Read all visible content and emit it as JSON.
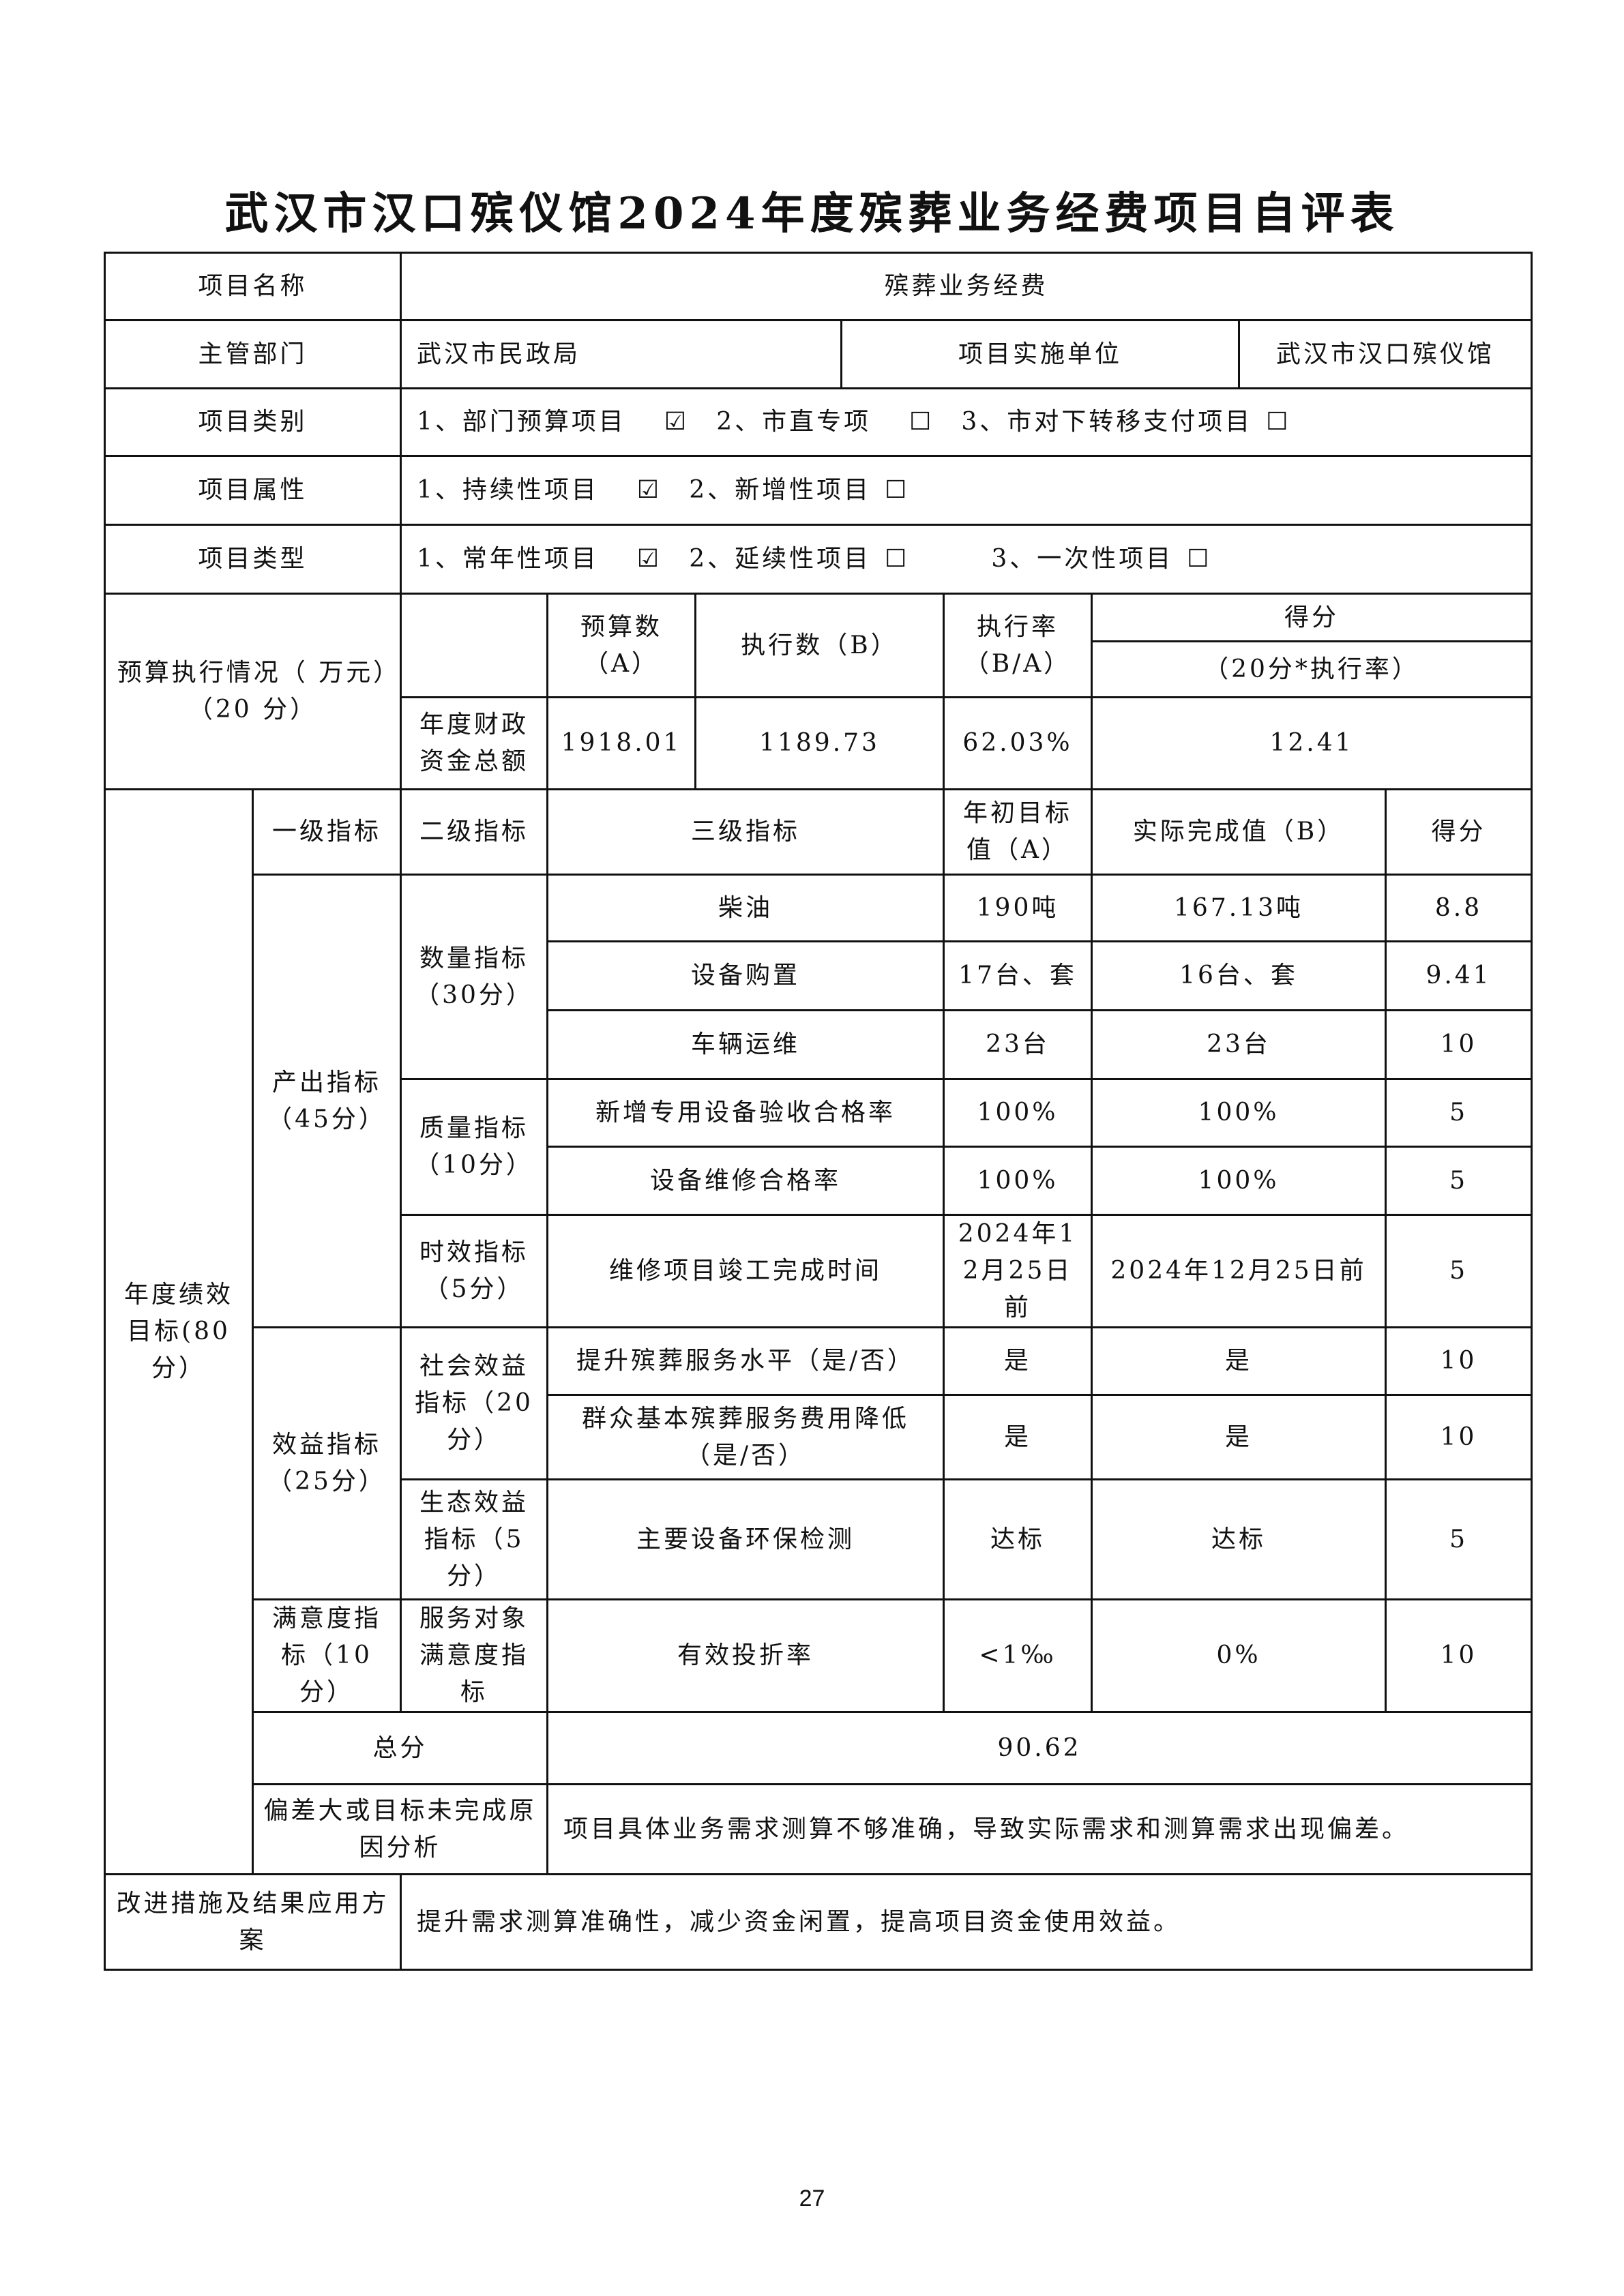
{
  "title": "武汉市汉口殡仪馆2024年度殡葬业务经费项目自评表",
  "project_name_label": "项目名称",
  "project_name": "殡葬业务经费",
  "dept_label": "主管部门",
  "dept": "武汉市民政局",
  "impl_label": "项目实施单位",
  "impl": "武汉市汉口殡仪馆",
  "category": {
    "label": "项目类别",
    "options": [
      {
        "text": "1、部门预算项目",
        "checked": true,
        "mark": "☑"
      },
      {
        "text": "2、市直专项",
        "checked": false,
        "mark": "☐"
      },
      {
        "text": "3、市对下转移支付项目",
        "checked": false,
        "mark": "☐"
      }
    ]
  },
  "attribute": {
    "label": "项目属性",
    "options": [
      {
        "text": "1、持续性项目",
        "checked": true,
        "mark": "☑"
      },
      {
        "text": "2、新增性项目",
        "checked": false,
        "mark": "☐"
      }
    ]
  },
  "type": {
    "label": "项目类型",
    "options": [
      {
        "text": "1、常年性项目",
        "checked": true,
        "mark": "☑"
      },
      {
        "text": "2、延续性项目",
        "checked": false,
        "mark": "☐"
      },
      {
        "text": "3、一次性项目",
        "checked": false,
        "mark": "☐"
      }
    ]
  },
  "budget": {
    "label": "预算执行情况（ 万元）（20 分）",
    "h_budget": "预算数（A）",
    "h_exec": "执行数（B）",
    "h_rate": "执行率（B/A）",
    "h_score": "得分",
    "h_score_formula": "（20分*执行率）",
    "row_label": "年度财政资金总额",
    "budget": "1918.01",
    "exec": "1189.73",
    "rate": "62.03%",
    "score": "12.41"
  },
  "perf": {
    "label": "年度绩效目标(80分）",
    "h1": "一级指标",
    "h2": "二级指标",
    "h3": "三级指标",
    "h4": "年初目标值（A）",
    "h5": "实际完成值（B）",
    "h6": "得分",
    "l1_output": "产出指标（45分）",
    "l1_benefit": "效益指标（25分）",
    "l1_satisfaction": "满意度指标（10分）",
    "l2_quantity": "数量指标（30分）",
    "l2_quality": "质量指标（10分）",
    "l2_time": "时效指标（5分）",
    "l2_social": "社会效益指标（20分）",
    "l2_eco": "生态效益指标（5分）",
    "l2_service": "服务对象满意度指标",
    "rows": [
      {
        "name": "柴油",
        "target": "190吨",
        "actual": "167.13吨",
        "score": "8.8"
      },
      {
        "name": "设备购置",
        "target": "17台、套",
        "actual": "16台、套",
        "score": "9.41"
      },
      {
        "name": "车辆运维",
        "target": "23台",
        "actual": "23台",
        "score": "10"
      },
      {
        "name": "新增专用设备验收合格率",
        "target": "100%",
        "actual": "100%",
        "score": "5"
      },
      {
        "name": "设备维修合格率",
        "target": "100%",
        "actual": "100%",
        "score": "5"
      },
      {
        "name": "维修项目竣工完成时间",
        "target": "2024年12月25日前",
        "actual": "2024年12月25日前",
        "score": "5"
      },
      {
        "name": "提升殡葬服务水平（是/否）",
        "target": "是",
        "actual": "是",
        "score": "10"
      },
      {
        "name": "群众基本殡葬服务费用降低（是/否）",
        "target": "是",
        "actual": "是",
        "score": "10"
      },
      {
        "name": "主要设备环保检测",
        "target": "达标",
        "actual": "达标",
        "score": "5"
      },
      {
        "name": "有效投折率",
        "target": "<1‰",
        "actual": "0%",
        "score": "10"
      }
    ]
  },
  "total_label": "总分",
  "total": "90.62",
  "deviation_label": "偏差大或目标未完成原因分析",
  "deviation": "项目具体业务需求测算不够准确，导致实际需求和测算需求出现偏差。",
  "improve_label": "改进措施及结果应用方案",
  "improve": "提升需求测算准确性，减少资金闲置，提高项目资金使用效益。",
  "page_number": "27"
}
